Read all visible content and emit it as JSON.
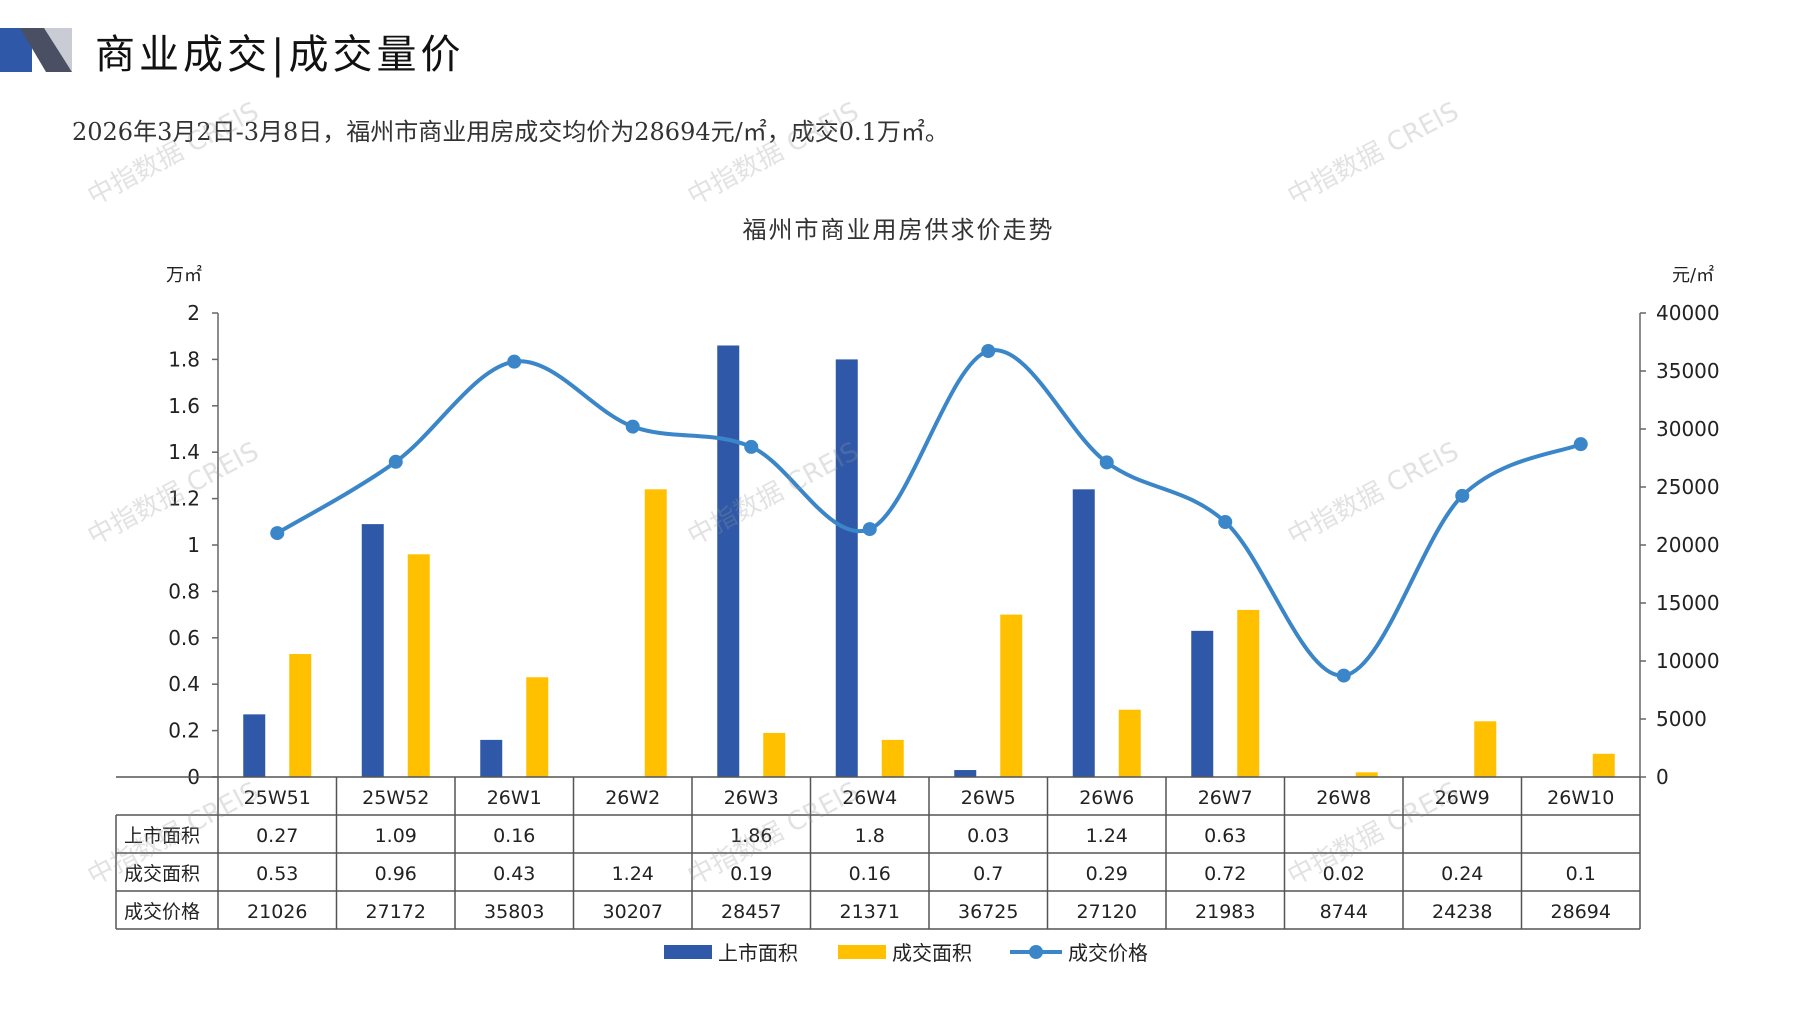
{
  "header": {
    "title": "商业成交|成交量价",
    "summary": "2026年3月2日-3月8日，福州市商业用房成交均价为28694元/㎡，成交0.1万㎡。"
  },
  "watermark": "中指数据 CREIS",
  "chart_data": {
    "type": "bar",
    "title": "福州市商业用房供求价走势",
    "y_left_unit": "万㎡",
    "y_right_unit": "元/㎡",
    "ylim_left": [
      0,
      2
    ],
    "ylim_right": [
      0,
      40000
    ],
    "yticks_left": [
      "0",
      "0.2",
      "0.4",
      "0.6",
      "0.8",
      "1",
      "1.2",
      "1.4",
      "1.6",
      "1.8",
      "2"
    ],
    "yticks_right": [
      "0",
      "5000",
      "10000",
      "15000",
      "20000",
      "25000",
      "30000",
      "35000",
      "40000"
    ],
    "categories": [
      "25W51",
      "25W52",
      "26W1",
      "26W2",
      "26W3",
      "26W4",
      "26W5",
      "26W6",
      "26W7",
      "26W8",
      "26W9",
      "26W10"
    ],
    "series": [
      {
        "name": "上市面积",
        "type": "bar",
        "axis": "left",
        "color": "#2F59A8",
        "values": [
          0.27,
          1.09,
          0.16,
          null,
          1.86,
          1.8,
          0.03,
          1.24,
          0.63,
          null,
          null,
          null
        ],
        "labels": [
          "0.27",
          "1.09",
          "0.16",
          "",
          "1.86",
          "1.8",
          "0.03",
          "1.24",
          "0.63",
          "",
          "",
          ""
        ]
      },
      {
        "name": "成交面积",
        "type": "bar",
        "axis": "left",
        "color": "#FFC000",
        "values": [
          0.53,
          0.96,
          0.43,
          1.24,
          0.19,
          0.16,
          0.7,
          0.29,
          0.72,
          0.02,
          0.24,
          0.1
        ],
        "labels": [
          "0.53",
          "0.96",
          "0.43",
          "1.24",
          "0.19",
          "0.16",
          "0.7",
          "0.29",
          "0.72",
          "0.02",
          "0.24",
          "0.1"
        ]
      },
      {
        "name": "成交价格",
        "type": "line",
        "axis": "right",
        "color": "#3A86C8",
        "values": [
          21026,
          27172,
          35803,
          30207,
          28457,
          21371,
          36725,
          27120,
          21983,
          8744,
          24238,
          28694
        ],
        "labels": [
          "21026",
          "27172",
          "35803",
          "30207",
          "28457",
          "21371",
          "36725",
          "27120",
          "21983",
          "8744",
          "24238",
          "28694"
        ]
      }
    ],
    "legend_position": "bottom",
    "data_table": true,
    "grid": false
  }
}
